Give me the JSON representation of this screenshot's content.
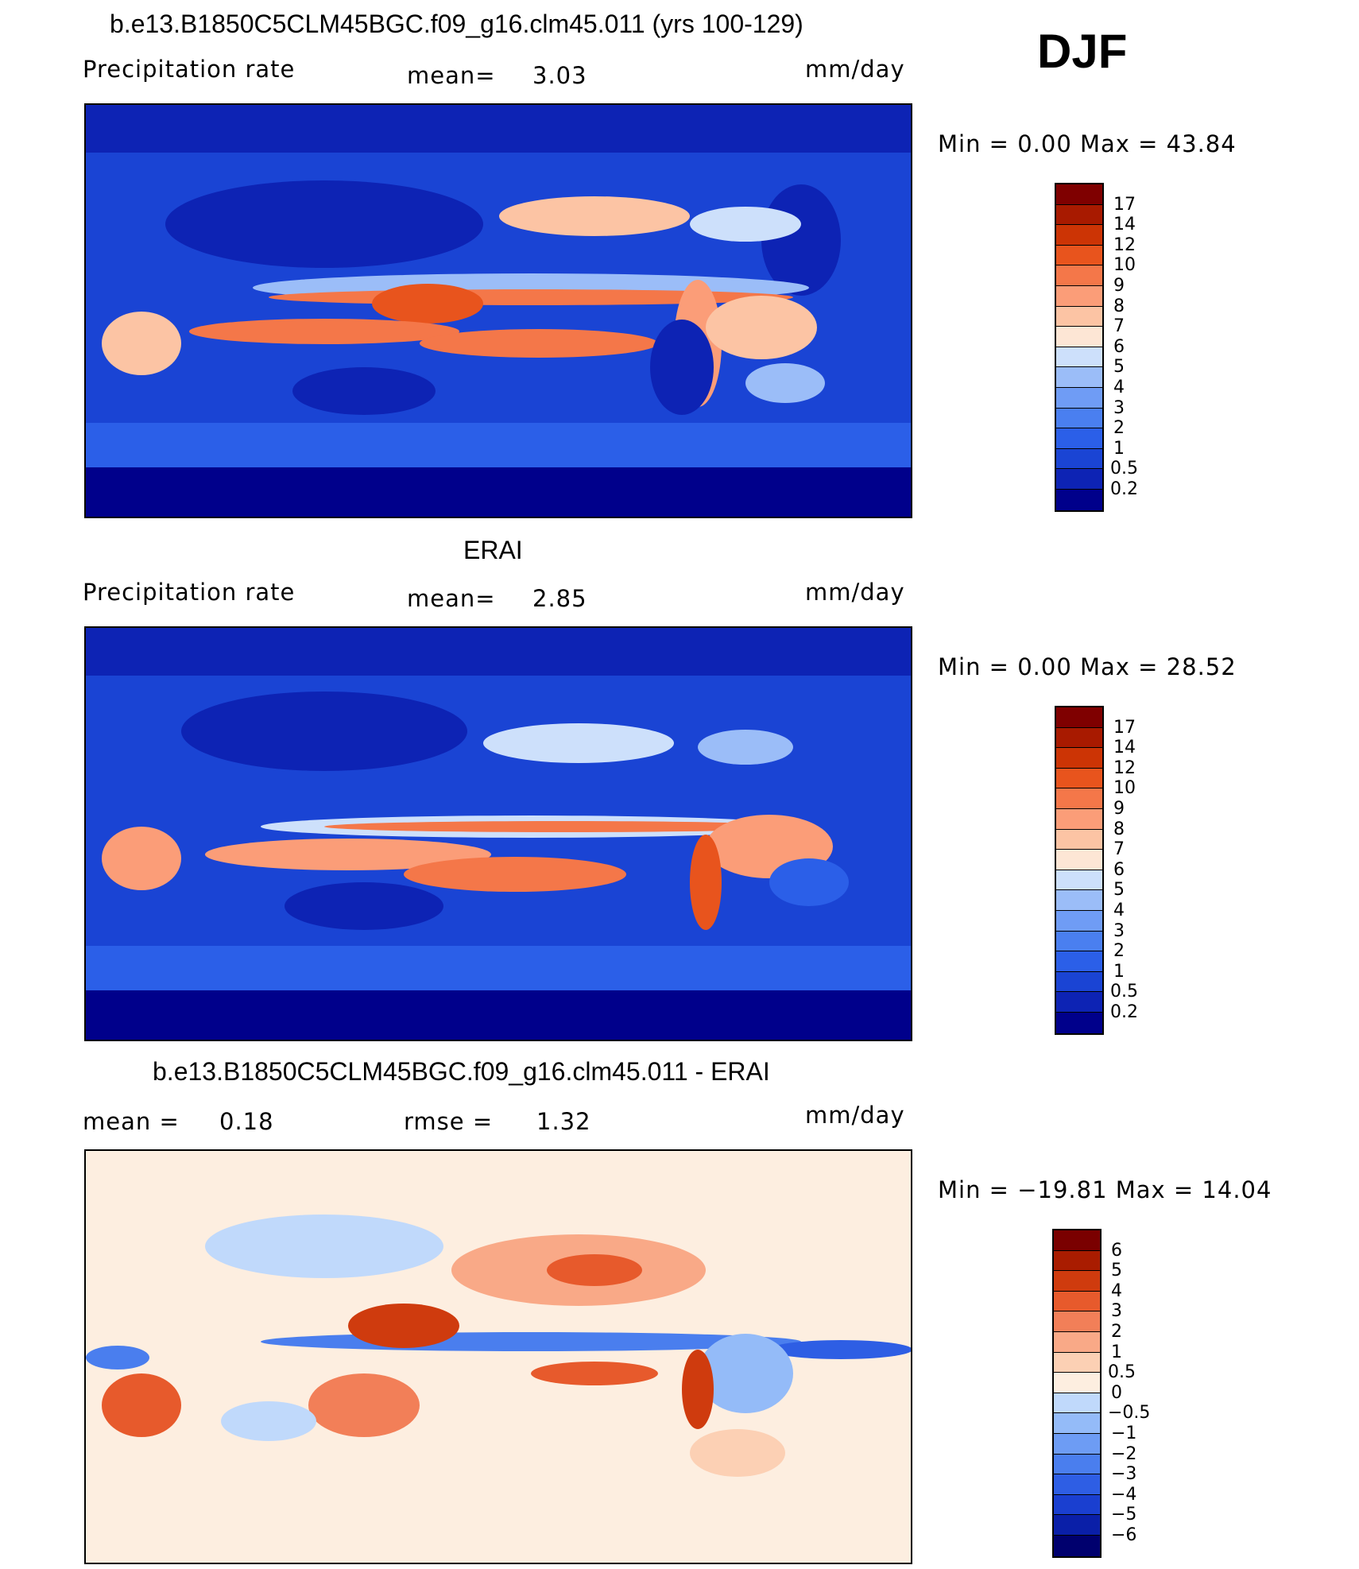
{
  "season": "DJF",
  "palettes": {
    "abs": [
      "#00008b",
      "#0d23b4",
      "#1a44d4",
      "#2b5fe8",
      "#4a7ff0",
      "#6f9cf5",
      "#9bbdf8",
      "#cde0fb",
      "#fde6d5",
      "#fcc4a4",
      "#fb9d78",
      "#f47749",
      "#e8541d",
      "#cc3405",
      "#a81a00",
      "#7f0000"
    ],
    "diff": [
      "#00006e",
      "#0a1fa8",
      "#1a3fd0",
      "#2e5ee4",
      "#4a7eee",
      "#6d9cf4",
      "#94bbf8",
      "#c0d9fb",
      "#fdeee0",
      "#fcd0b4",
      "#f9a987",
      "#f27f58",
      "#e75a2c",
      "#cf3b0e",
      "#a91c00",
      "#7a0000"
    ]
  },
  "panels": [
    {
      "title": "b.e13.B1850C5CLM45BGC.f09_g16.clm45.011 (yrs 100-129)",
      "left_label": "Precipitation  rate",
      "mid_label": "mean=",
      "mid_value": "3.03",
      "units": "mm/day",
      "minmax": "Min  =      0.00  Max  =     43.84",
      "colorbar": {
        "labels": [
          "17",
          "14",
          "12",
          "10",
          "9",
          "8",
          "7",
          "6",
          "5",
          "4",
          "3",
          "2",
          "1",
          "0.5",
          "0.2"
        ]
      }
    },
    {
      "title": "ERAI",
      "left_label": "Precipitation  rate",
      "mid_label": "mean=",
      "mid_value": "2.85",
      "units": "mm/day",
      "minmax": "Min  =      0.00  Max  =     28.52",
      "colorbar": {
        "labels": [
          "17",
          "14",
          "12",
          "10",
          "9",
          "8",
          "7",
          "6",
          "5",
          "4",
          "3",
          "2",
          "1",
          "0.5",
          "0.2"
        ]
      }
    },
    {
      "title": "b.e13.B1850C5CLM45BGC.f09_g16.clm45.011 - ERAI",
      "left_label": "mean  =",
      "left_value": "0.18",
      "mid_label": "rmse  =",
      "mid_value": "1.32",
      "units": "mm/day",
      "minmax": "Min  = −19.81  Max  =     14.04",
      "colorbar": {
        "labels": [
          "6",
          "5",
          "4",
          "3",
          "2",
          "1",
          "0.5",
          "0",
          "−0.5",
          "−1",
          "−2",
          "−3",
          "−4",
          "−5",
          "−6"
        ]
      }
    }
  ],
  "chart_data": [
    {
      "type": "heatmap",
      "title": "b.e13.B1850C5CLM45BGC.f09_g16.clm45.011 (yrs 100-129)",
      "variable": "Precipitation  rate",
      "units": "mm/day",
      "mean": 3.03,
      "min": 0.0,
      "max": 43.84,
      "contour_levels": [
        0.2,
        0.5,
        1,
        2,
        3,
        4,
        5,
        6,
        7,
        8,
        9,
        10,
        12,
        14,
        17
      ],
      "projection": "cylindrical equidistant, global",
      "color_scale": "blue (low) to red (high)"
    },
    {
      "type": "heatmap",
      "title": "ERAI",
      "variable": "Precipitation  rate",
      "units": "mm/day",
      "mean": 2.85,
      "min": 0.0,
      "max": 28.52,
      "contour_levels": [
        0.2,
        0.5,
        1,
        2,
        3,
        4,
        5,
        6,
        7,
        8,
        9,
        10,
        12,
        14,
        17
      ],
      "projection": "cylindrical equidistant, global",
      "color_scale": "blue (low) to red (high)"
    },
    {
      "type": "heatmap",
      "title": "b.e13.B1850C5CLM45BGC.f09_g16.clm45.011 - ERAI",
      "units": "mm/day",
      "mean": 0.18,
      "rmse": 1.32,
      "min": -19.81,
      "max": 14.04,
      "contour_levels": [
        -6,
        -5,
        -4,
        -3,
        -2,
        -1,
        -0.5,
        0,
        0.5,
        1,
        2,
        3,
        4,
        5,
        6
      ],
      "projection": "cylindrical equidistant, global",
      "color_scale": "blue (negative) to red (positive)"
    }
  ]
}
